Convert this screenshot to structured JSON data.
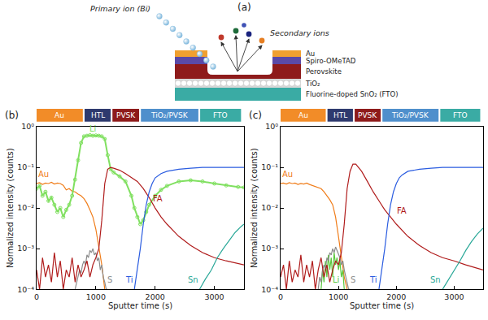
{
  "diagram": {
    "panel_label": "(a)",
    "primary_ion": "Primary ion (Bi)",
    "secondary_ions": "Secondary ions",
    "layers": [
      "Au",
      "Spiro-OMeTAD",
      "Perovskite",
      "TiO₂",
      "Fluorine-doped SnO₂ (FTO)"
    ]
  },
  "chart_data": [
    {
      "type": "line",
      "panel_label": "(b)",
      "x_label": "Sputter time (s)",
      "y_label": "Normalized intensity (counts)",
      "xlim": [
        0,
        3500
      ],
      "xticks": [
        0,
        1000,
        2000,
        3000
      ],
      "ylim": [
        0.0001,
        1
      ],
      "yticks": [
        {
          "value": 0.0001,
          "label": "10⁻⁴"
        },
        {
          "value": 0.001,
          "label": "10⁻³"
        },
        {
          "value": 0.01,
          "label": "10⁻²"
        },
        {
          "value": 0.1,
          "label": "10⁻¹"
        },
        {
          "value": 1,
          "label": "10⁰"
        }
      ],
      "log": "y",
      "grid": false,
      "regions": [
        {
          "label": "Au",
          "x0": 0,
          "x1": 780,
          "color": "#f28c28"
        },
        {
          "label": "HTL",
          "x0": 810,
          "x1": 1250,
          "color": "#2e3a6e"
        },
        {
          "label": "PVSK",
          "x0": 1280,
          "x1": 1730,
          "color": "#8e1b1b"
        },
        {
          "label": "TiO₂/PVSK",
          "x0": 1760,
          "x1": 2730,
          "color": "#4f8fcc"
        },
        {
          "label": "FTO",
          "x0": 2760,
          "x1": 3450,
          "color": "#3aaba4"
        }
      ],
      "series": [
        {
          "name": "Au",
          "color": "#f07d1a",
          "label_at": {
            "x": 120,
            "y": 0.048
          },
          "x": [
            0,
            50,
            100,
            150,
            200,
            250,
            300,
            350,
            400,
            450,
            500,
            550,
            600,
            650,
            700,
            750,
            800,
            850,
            900,
            950,
            1000,
            1050,
            1100,
            1150
          ],
          "values": [
            0.04,
            0.042,
            0.038,
            0.041,
            0.04,
            0.043,
            0.039,
            0.041,
            0.04,
            0.036,
            0.028,
            0.03,
            0.026,
            0.025,
            0.022,
            0.02,
            0.017,
            0.013,
            0.009,
            0.006,
            0.003,
            0.0012,
            0.0004,
            0.0001
          ]
        },
        {
          "name": "Li",
          "color": "#80e060",
          "marker": "circle-open",
          "label_at": {
            "x": 950,
            "y": 0.62
          },
          "x": [
            0,
            50,
            100,
            150,
            200,
            250,
            300,
            350,
            400,
            450,
            500,
            550,
            600,
            650,
            700,
            750,
            800,
            850,
            900,
            950,
            1000,
            1050,
            1100,
            1150,
            1200,
            1250,
            1300,
            1400,
            1500,
            1600,
            1650,
            1700,
            1750,
            1800,
            1850,
            1900,
            2000,
            2100,
            2200,
            2400,
            2600,
            2800,
            3000,
            3200,
            3400,
            3500
          ],
          "values": [
            0.03,
            0.035,
            0.02,
            0.025,
            0.015,
            0.018,
            0.012,
            0.008,
            0.01,
            0.006,
            0.009,
            0.012,
            0.02,
            0.05,
            0.15,
            0.4,
            0.58,
            0.6,
            0.62,
            0.6,
            0.61,
            0.6,
            0.58,
            0.5,
            0.2,
            0.09,
            0.075,
            0.06,
            0.045,
            0.02,
            0.01,
            0.006,
            0.004,
            0.005,
            0.008,
            0.012,
            0.02,
            0.028,
            0.035,
            0.045,
            0.048,
            0.045,
            0.04,
            0.036,
            0.033,
            0.032
          ]
        },
        {
          "name": "S",
          "color": "#8c8c8c",
          "label_at": {
            "x": 1240,
            "y": 0.00012
          },
          "x": [
            650,
            675,
            700,
            725,
            750,
            775,
            800,
            825,
            850,
            875,
            900,
            925,
            950,
            975,
            1000,
            1025,
            1050,
            1075,
            1100,
            1125,
            1150,
            1175,
            1200
          ],
          "values": [
            0.0001,
            0.00015,
            0.0002,
            0.0003,
            0.00025,
            0.0004,
            0.0005,
            0.0004,
            0.0007,
            0.0006,
            0.0009,
            0.0008,
            0.001,
            0.0007,
            0.0008,
            0.0005,
            0.0006,
            0.0003,
            0.0004,
            0.0002,
            0.00015,
            0.0001,
            0.0001
          ]
        },
        {
          "name": "FA",
          "color": "#b01c1c",
          "label_at": {
            "x": 2050,
            "y": 0.012
          },
          "x": [
            0,
            50,
            100,
            150,
            200,
            250,
            300,
            350,
            400,
            450,
            500,
            550,
            600,
            650,
            700,
            750,
            800,
            850,
            900,
            950,
            1000,
            1050,
            1100,
            1150,
            1200,
            1250,
            1300,
            1350,
            1400,
            1500,
            1600,
            1700,
            1800,
            1900,
            2000,
            2100,
            2200,
            2300,
            2400,
            2600,
            2800,
            3000,
            3200,
            3500
          ],
          "values": [
            0.0003,
            0.0001,
            0.0006,
            0.0002,
            0.0004,
            0.00015,
            0.0008,
            0.0002,
            0.0005,
            0.0001,
            0.0003,
            0.0002,
            0.0006,
            0.00015,
            0.0004,
            0.0002,
            0.0003,
            0.0005,
            0.0002,
            0.0004,
            0.0006,
            0.001,
            0.005,
            0.04,
            0.09,
            0.1,
            0.095,
            0.09,
            0.085,
            0.07,
            0.055,
            0.045,
            0.03,
            0.018,
            0.01,
            0.006,
            0.004,
            0.0028,
            0.002,
            0.0012,
            0.0008,
            0.0006,
            0.0005,
            0.0004
          ]
        },
        {
          "name": "Ti",
          "color": "#2a5ce0",
          "label_at": {
            "x": 1560,
            "y": 0.00012
          },
          "x": [
            1650,
            1700,
            1750,
            1800,
            1850,
            1900,
            1950,
            2000,
            2100,
            2200,
            2400,
            2600,
            2800,
            3000,
            3500
          ],
          "values": [
            0.0001,
            0.0003,
            0.001,
            0.004,
            0.012,
            0.025,
            0.04,
            0.055,
            0.07,
            0.08,
            0.09,
            0.095,
            0.1,
            0.1,
            0.1
          ]
        },
        {
          "name": "Sn",
          "color": "#2aa898",
          "label_at": {
            "x": 2640,
            "y": 0.00012
          },
          "x": [
            2750,
            2850,
            2950,
            3050,
            3150,
            3250,
            3350,
            3450,
            3500
          ],
          "values": [
            0.0001,
            0.00018,
            0.0003,
            0.0006,
            0.001,
            0.0016,
            0.0025,
            0.0035,
            0.004
          ]
        }
      ]
    },
    {
      "type": "line",
      "panel_label": "(c)",
      "x_label": "Sputter time (s)",
      "y_label": "Normalized intensity (counts)",
      "xlim": [
        0,
        3500
      ],
      "xticks": [
        0,
        1000,
        2000,
        3000
      ],
      "ylim": [
        0.0001,
        1
      ],
      "yticks": [
        {
          "value": 0.0001,
          "label": "10⁻⁴"
        },
        {
          "value": 0.001,
          "label": "10⁻³"
        },
        {
          "value": 0.01,
          "label": "10⁻²"
        },
        {
          "value": 0.1,
          "label": "10⁻¹"
        },
        {
          "value": 1,
          "label": "10⁰"
        }
      ],
      "log": "y",
      "grid": false,
      "regions": [
        {
          "label": "Au",
          "x0": 0,
          "x1": 780,
          "color": "#f28c28"
        },
        {
          "label": "HTL",
          "x0": 810,
          "x1": 1250,
          "color": "#2e3a6e"
        },
        {
          "label": "PVSK",
          "x0": 1280,
          "x1": 1730,
          "color": "#8e1b1b"
        },
        {
          "label": "TiO₂/PVSK",
          "x0": 1760,
          "x1": 2730,
          "color": "#4f8fcc"
        },
        {
          "label": "FTO",
          "x0": 2760,
          "x1": 3450,
          "color": "#3aaba4"
        }
      ],
      "series": [
        {
          "name": "Au",
          "color": "#f07d1a",
          "label_at": {
            "x": 120,
            "y": 0.048
          },
          "x": [
            0,
            50,
            100,
            150,
            200,
            250,
            300,
            350,
            400,
            450,
            500,
            550,
            600,
            650,
            700,
            750,
            800,
            850,
            900,
            950,
            1000,
            1050,
            1100,
            1150
          ],
          "values": [
            0.04,
            0.041,
            0.039,
            0.042,
            0.04,
            0.041,
            0.038,
            0.04,
            0.039,
            0.041,
            0.038,
            0.036,
            0.034,
            0.032,
            0.03,
            0.025,
            0.02,
            0.016,
            0.012,
            0.006,
            0.002,
            0.0006,
            0.0002,
            0.0001
          ]
        },
        {
          "name": "Li",
          "color": "#5ac83c",
          "label_at": {
            "x": 960,
            "y": 0.00012
          },
          "x": [
            700,
            725,
            750,
            775,
            800,
            825,
            850,
            875,
            900,
            925,
            950,
            975,
            1000,
            1025,
            1050,
            1075,
            1100
          ],
          "values": [
            0.0001,
            0.0003,
            0.00015,
            0.0005,
            0.0002,
            0.0007,
            0.0003,
            0.0006,
            0.0002,
            0.0008,
            0.0004,
            0.0006,
            0.0003,
            0.0005,
            0.0002,
            0.0003,
            0.0001
          ]
        },
        {
          "name": "S",
          "color": "#8c8c8c",
          "label_at": {
            "x": 1250,
            "y": 0.00012
          },
          "x": [
            650,
            675,
            700,
            725,
            750,
            775,
            800,
            825,
            850,
            875,
            900,
            925,
            950,
            975,
            1000,
            1025,
            1050,
            1075,
            1100,
            1125,
            1150,
            1175,
            1200
          ],
          "values": [
            0.0001,
            0.0002,
            0.00015,
            0.0003,
            0.0004,
            0.0003,
            0.0006,
            0.0005,
            0.0008,
            0.0007,
            0.001,
            0.0008,
            0.0011,
            0.0009,
            0.0007,
            0.0006,
            0.0004,
            0.0005,
            0.0003,
            0.0002,
            0.00015,
            0.0001,
            0.0001
          ]
        },
        {
          "name": "FA",
          "color": "#b01c1c",
          "label_at": {
            "x": 2100,
            "y": 0.006
          },
          "x": [
            0,
            50,
            100,
            150,
            200,
            250,
            300,
            350,
            400,
            450,
            500,
            550,
            600,
            650,
            700,
            750,
            800,
            850,
            900,
            950,
            1000,
            1050,
            1100,
            1150,
            1200,
            1250,
            1300,
            1350,
            1400,
            1500,
            1600,
            1700,
            1800,
            1900,
            2000,
            2200,
            2400,
            2600,
            2800,
            3000,
            3200,
            3500
          ],
          "values": [
            0.0002,
            0.0004,
            0.0001,
            0.0005,
            0.00015,
            0.0003,
            0.0002,
            0.0007,
            0.00015,
            0.0004,
            0.0002,
            0.0005,
            0.0001,
            0.0003,
            0.0006,
            0.0002,
            0.0004,
            0.00015,
            0.0003,
            0.0005,
            0.0004,
            0.0008,
            0.004,
            0.03,
            0.08,
            0.12,
            0.12,
            0.1,
            0.08,
            0.045,
            0.025,
            0.015,
            0.009,
            0.006,
            0.004,
            0.002,
            0.0012,
            0.0008,
            0.0006,
            0.0005,
            0.0004,
            0.0003
          ]
        },
        {
          "name": "Ti",
          "color": "#2a5ce0",
          "label_at": {
            "x": 1600,
            "y": 0.00012
          },
          "x": [
            1700,
            1750,
            1800,
            1850,
            1900,
            1950,
            2000,
            2050,
            2100,
            2200,
            2400,
            2600,
            2800,
            3000,
            3500
          ],
          "values": [
            0.0001,
            0.0003,
            0.001,
            0.004,
            0.012,
            0.025,
            0.04,
            0.055,
            0.065,
            0.08,
            0.09,
            0.095,
            0.1,
            0.1,
            0.1
          ]
        },
        {
          "name": "Sn",
          "color": "#2aa898",
          "label_at": {
            "x": 2680,
            "y": 0.00012
          },
          "x": [
            2800,
            2900,
            3000,
            3100,
            3200,
            3300,
            3400,
            3500
          ],
          "values": [
            0.0001,
            0.00017,
            0.0003,
            0.0005,
            0.0009,
            0.0015,
            0.0023,
            0.0032
          ]
        }
      ]
    }
  ]
}
